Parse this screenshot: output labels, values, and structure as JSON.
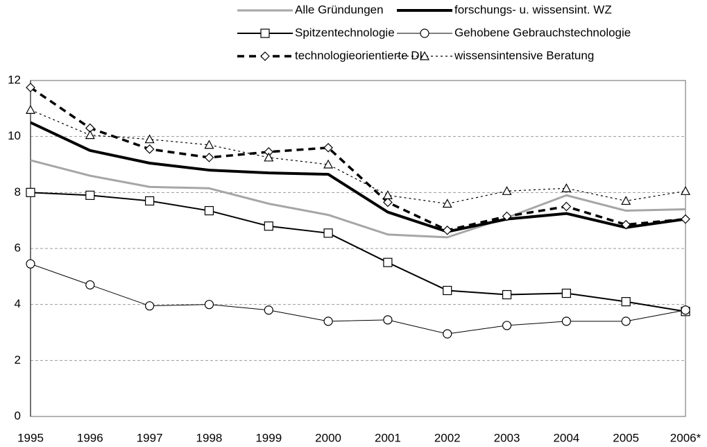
{
  "chart_data": {
    "type": "line",
    "categories": [
      "1995",
      "1996",
      "1997",
      "1998",
      "1999",
      "2000",
      "2001",
      "2002",
      "2003",
      "2004",
      "2005",
      "2006*"
    ],
    "series": [
      {
        "name": "Alle Gründungen",
        "color": "#a6a6a6",
        "width": 3,
        "dash": "solid",
        "marker": "none",
        "values": [
          9.15,
          8.6,
          8.2,
          8.15,
          7.6,
          7.2,
          6.5,
          6.4,
          7.1,
          7.9,
          7.35,
          7.4
        ]
      },
      {
        "name": "forschungs- u. wissensint. WZ",
        "color": "#000000",
        "width": 4,
        "dash": "solid",
        "marker": "none",
        "values": [
          10.5,
          9.5,
          9.05,
          8.8,
          8.7,
          8.65,
          7.3,
          6.6,
          7.05,
          7.25,
          6.75,
          7.05
        ]
      },
      {
        "name": "Spitzentechnologie",
        "color": "#000000",
        "width": 2,
        "dash": "solid",
        "marker": "square",
        "values": [
          8.0,
          7.9,
          7.7,
          7.35,
          6.8,
          6.55,
          5.5,
          4.5,
          4.35,
          4.4,
          4.1,
          3.75
        ]
      },
      {
        "name": "Gehobene Gebrauchstechnologie",
        "color": "#000000",
        "width": 1,
        "dash": "solid",
        "marker": "circle",
        "values": [
          5.45,
          4.7,
          3.95,
          4.0,
          3.8,
          3.4,
          3.45,
          2.95,
          3.25,
          3.4,
          3.4,
          3.8
        ]
      },
      {
        "name": "technologieorientierte DL",
        "color": "#000000",
        "width": 3.5,
        "dash": "dashed",
        "marker": "diamond",
        "values": [
          11.75,
          10.3,
          9.55,
          9.25,
          9.45,
          9.6,
          7.65,
          6.65,
          7.15,
          7.5,
          6.85,
          7.05
        ]
      },
      {
        "name": "wissensintensive Beratung",
        "color": "#000000",
        "width": 1.2,
        "dash": "dotted",
        "marker": "triangle",
        "values": [
          10.95,
          10.05,
          9.9,
          9.7,
          9.25,
          9.0,
          7.9,
          7.6,
          8.05,
          8.15,
          7.7,
          8.05
        ]
      }
    ],
    "ylim": [
      0,
      12
    ],
    "yticks": [
      0,
      2,
      4,
      6,
      8,
      10,
      12
    ],
    "grid": true,
    "legend": "top"
  }
}
